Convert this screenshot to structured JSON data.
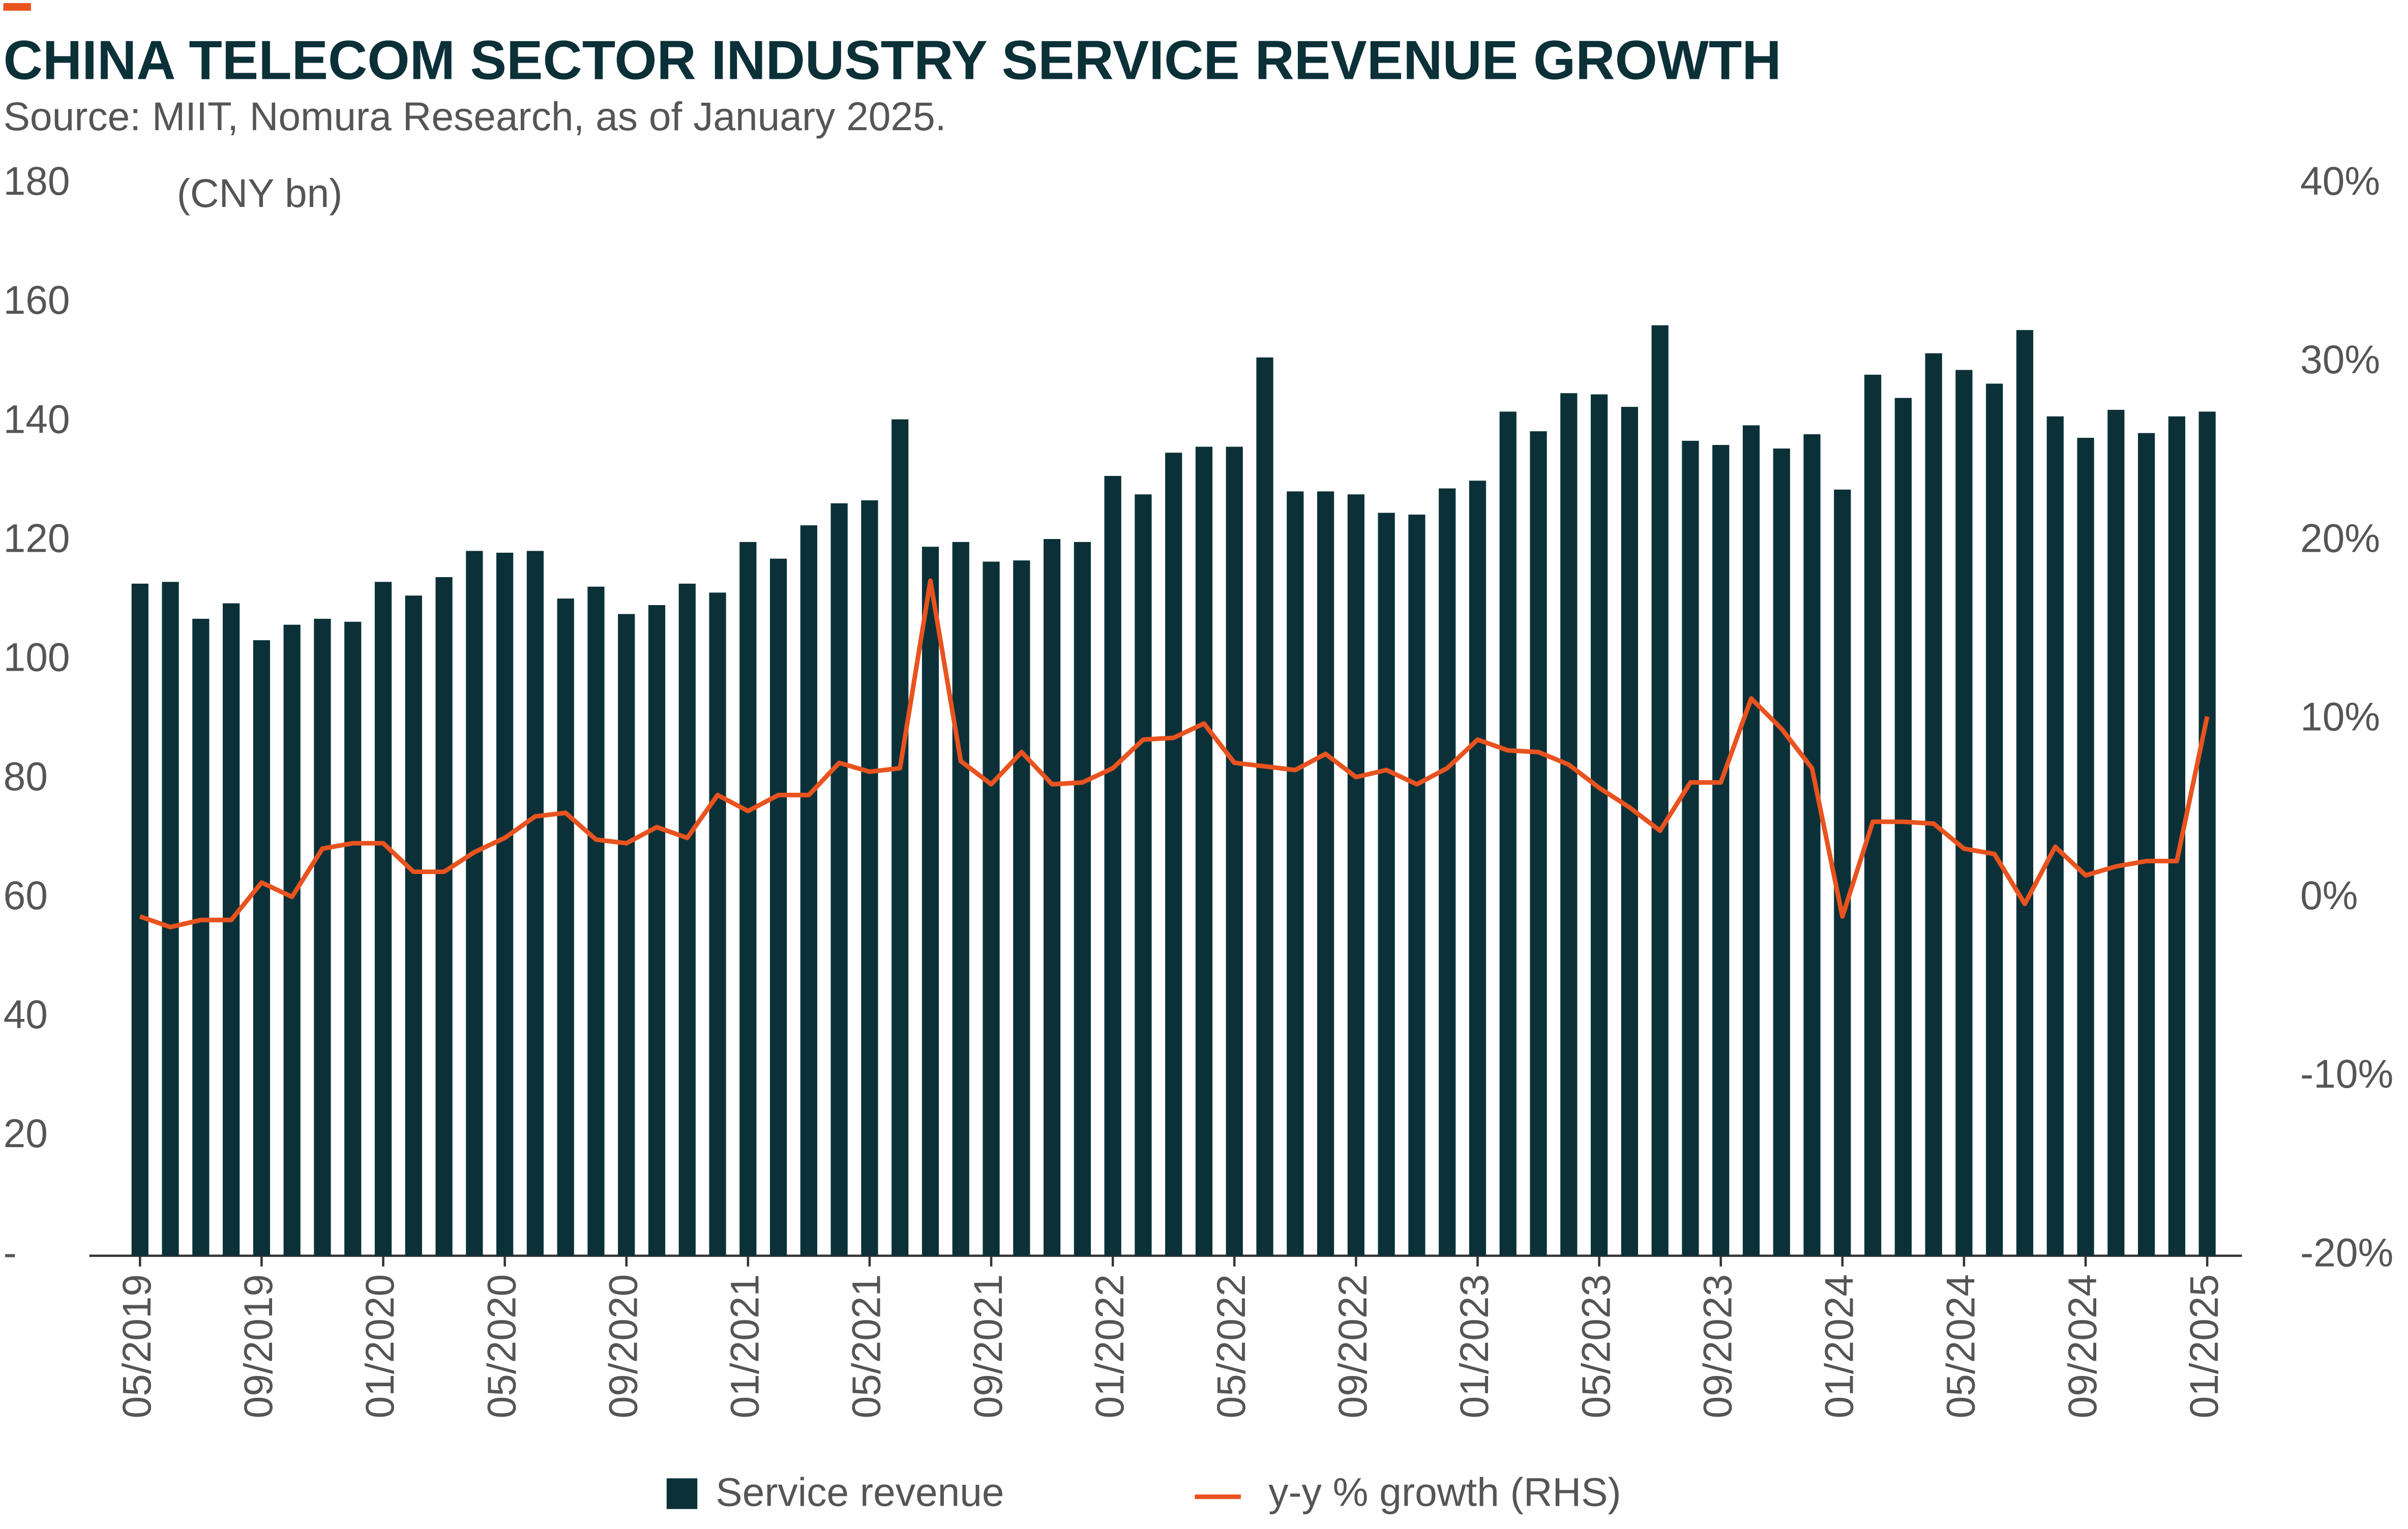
{
  "chart_data": {
    "type": "bar_line",
    "title": "CHINA TELECOM SECTOR INDUSTRY SERVICE REVENUE GROWTH",
    "subtitle": "Source: MIIT, Nomura Research, as of January 2025.",
    "y_unit_label": "(CNY bn)",
    "categories": [
      "05/2019",
      null,
      null,
      null,
      "09/2019",
      null,
      null,
      null,
      "01/2020",
      null,
      null,
      null,
      "05/2020",
      null,
      null,
      null,
      "09/2020",
      null,
      null,
      null,
      "01/2021",
      null,
      null,
      null,
      "05/2021",
      null,
      null,
      null,
      "09/2021",
      null,
      null,
      null,
      "01/2022",
      null,
      null,
      null,
      "05/2022",
      null,
      null,
      null,
      "09/2022",
      null,
      null,
      null,
      "01/2023",
      null,
      null,
      null,
      "05/2023",
      null,
      null,
      null,
      "09/2023",
      null,
      null,
      null,
      "01/2024",
      null,
      null,
      null,
      "05/2024",
      null,
      null,
      null,
      "09/2024",
      null,
      null,
      null,
      "01/2025"
    ],
    "series": [
      {
        "name": "Service revenue",
        "type": "bar",
        "color": "#0b3038",
        "values": [
          112.9,
          113.2,
          107,
          109.6,
          103.4,
          106,
          107,
          106.5,
          113.2,
          110.9,
          114,
          118.4,
          118.1,
          118.4,
          110.4,
          112.4,
          107.8,
          109.3,
          112.9,
          111.4,
          119.9,
          117.1,
          122.7,
          126.4,
          126.9,
          140.5,
          119.1,
          119.9,
          116.6,
          116.8,
          120.4,
          119.9,
          131,
          127.9,
          134.9,
          135.9,
          135.9,
          150.9,
          128.4,
          128.4,
          127.9,
          124.8,
          124.5,
          128.9,
          130.2,
          141.8,
          138.5,
          144.9,
          144.7,
          142.6,
          156.3,
          136.9,
          136.2,
          139.5,
          135.6,
          138,
          128.7,
          148,
          144.1,
          151.6,
          148.8,
          146.5,
          155.5,
          141,
          137.4,
          142.1,
          138.2,
          141,
          141.8
        ]
      },
      {
        "name": "y-y % growth (RHS)",
        "type": "line",
        "axis": "y2",
        "color": "#e8531f",
        "values": [
          -1,
          -1.6,
          -1.2,
          -1.2,
          0.9,
          0.1,
          2.8,
          3.1,
          3.1,
          1.5,
          1.5,
          2.6,
          3.4,
          4.6,
          4.8,
          3.3,
          3.1,
          4.0,
          3.4,
          5.8,
          4.9,
          5.8,
          5.8,
          7.6,
          7.1,
          7.3,
          17.8,
          7.7,
          6.4,
          8.2,
          6.4,
          6.5,
          7.3,
          8.9,
          9.0,
          9.8,
          7.6,
          7.4,
          7.2,
          8.1,
          6.8,
          7.2,
          6.4,
          7.3,
          8.9,
          8.3,
          8.2,
          7.5,
          6.2,
          5.1,
          3.8,
          6.5,
          6.5,
          11.2,
          9.5,
          7.3,
          -1.0,
          4.3,
          4.3,
          4.2,
          2.8,
          2.5,
          -0.3,
          2.9,
          1.3,
          1.8,
          2.1,
          2.1,
          10.2
        ]
      }
    ],
    "ylim": [
      0,
      180
    ],
    "yticks": [
      {
        "value": 0,
        "label": "-"
      },
      20,
      40,
      60,
      80,
      100,
      120,
      140,
      160,
      180
    ],
    "y2lim": [
      -20,
      40
    ],
    "y2ticks": [
      {
        "value": -20,
        "label": "-20%"
      },
      {
        "value": -10,
        "label": "-10%"
      },
      {
        "value": 0,
        "label": "0%"
      },
      {
        "value": 10,
        "label": "10%"
      },
      {
        "value": 20,
        "label": "20%"
      },
      {
        "value": 30,
        "label": "30%"
      },
      {
        "value": 40,
        "label": "40%"
      }
    ],
    "grid": false
  }
}
